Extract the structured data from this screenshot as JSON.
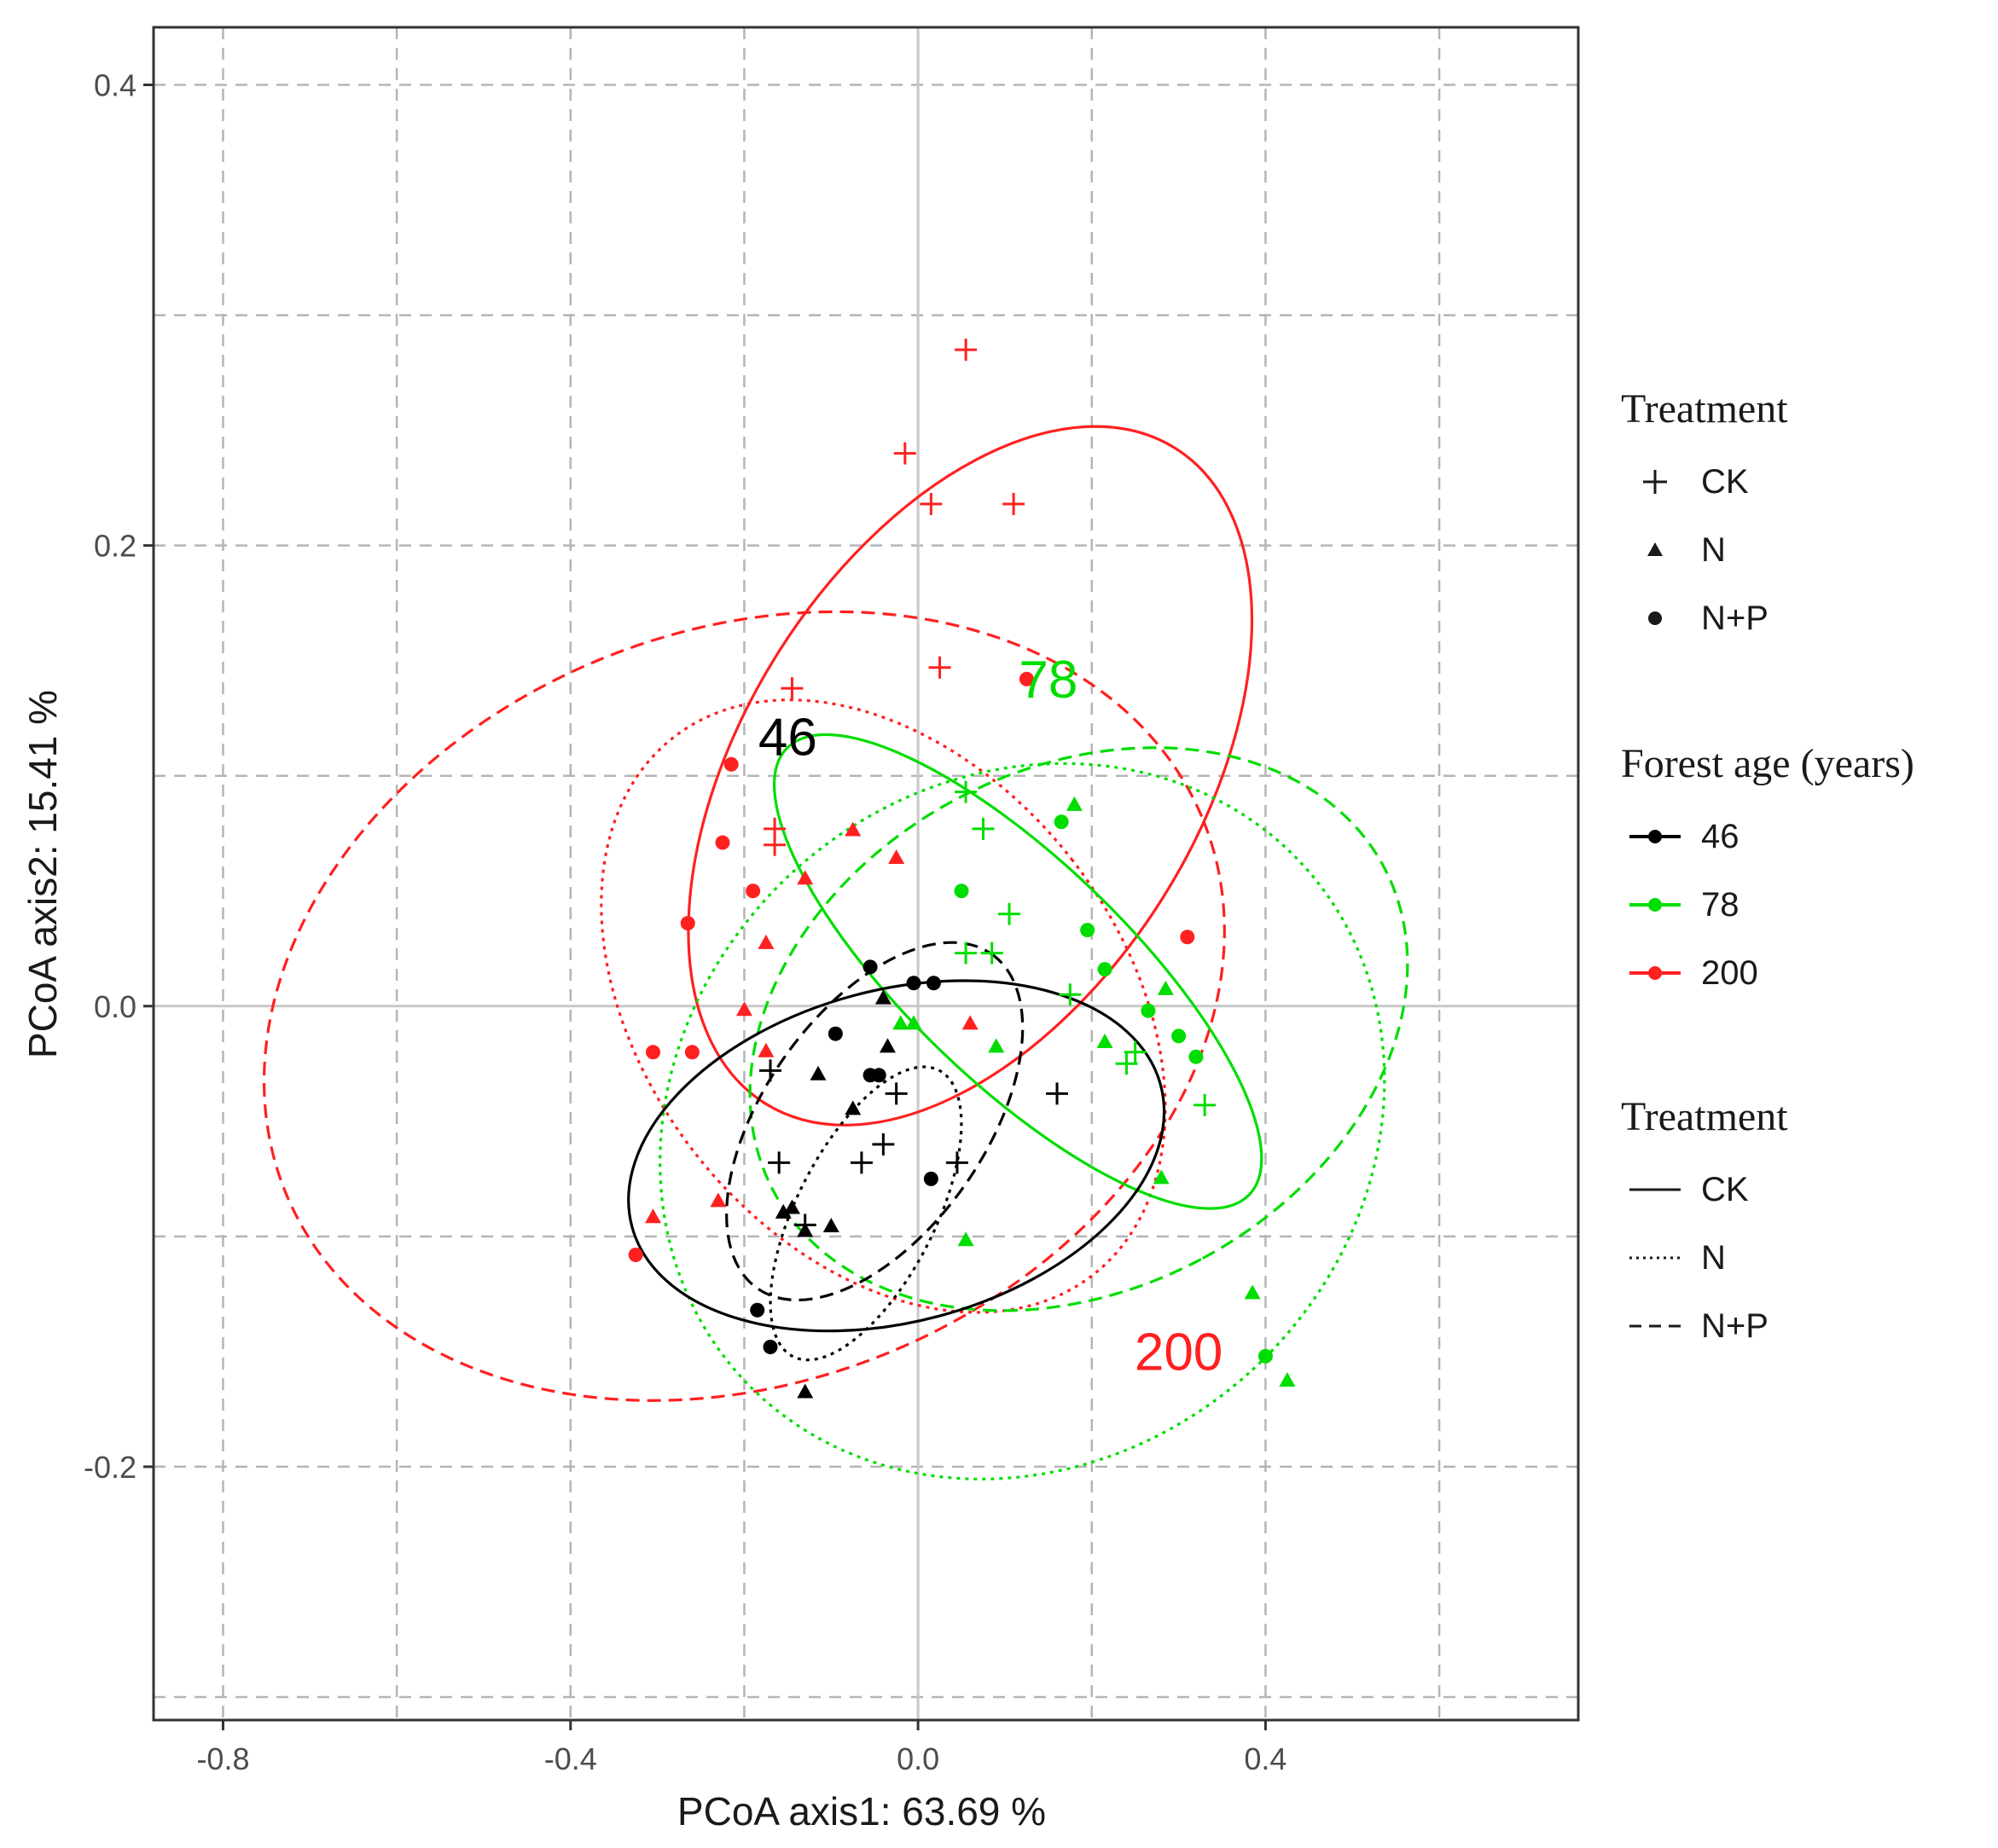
{
  "chart_data": {
    "type": "scatter",
    "title": "",
    "xlabel": "PCoA axis1:  63.69 %",
    "ylabel": "PCoA axis2:  15.41 %",
    "xlim": [
      -0.88,
      0.76
    ],
    "ylim": [
      -0.31,
      0.425
    ],
    "xticks": [
      -0.8,
      -0.4,
      0.0,
      0.4
    ],
    "xtick_labels": [
      "-0.8",
      "-0.4",
      "0.0",
      "0.4"
    ],
    "yticks": [
      -0.2,
      0.0,
      0.2,
      0.4
    ],
    "ytick_labels": [
      "-0.2",
      "0.0",
      "0.2",
      "0.4"
    ],
    "minor_gridlines_x": [
      -0.6,
      -0.2,
      0.2,
      0.6
    ],
    "minor_gridlines_y": [
      -0.3,
      -0.1,
      0.1,
      0.3
    ],
    "grid": true,
    "colors": {
      "46": "#000000",
      "78": "#00dd00",
      "200": "#ff2020"
    },
    "series": [
      {
        "name": "46",
        "treatment": "CK",
        "shape": "plus",
        "points": [
          [
            -0.17,
            -0.028
          ],
          [
            -0.16,
            -0.068
          ],
          [
            -0.025,
            -0.038
          ],
          [
            -0.065,
            -0.068
          ],
          [
            -0.04,
            -0.06
          ],
          [
            0.045,
            -0.068
          ],
          [
            -0.13,
            -0.095
          ],
          [
            0.16,
            -0.038
          ]
        ]
      },
      {
        "name": "46",
        "treatment": "N",
        "shape": "triangle",
        "points": [
          [
            -0.04,
            0.003
          ],
          [
            -0.035,
            -0.018
          ],
          [
            -0.115,
            -0.03
          ],
          [
            -0.075,
            -0.045
          ],
          [
            -0.145,
            -0.088
          ],
          [
            -0.155,
            -0.09
          ],
          [
            -0.13,
            -0.098
          ],
          [
            -0.1,
            -0.096
          ],
          [
            -0.13,
            -0.168
          ]
        ]
      },
      {
        "name": "46",
        "treatment": "N+P",
        "shape": "circle",
        "points": [
          [
            -0.055,
            0.017
          ],
          [
            -0.005,
            0.01
          ],
          [
            0.018,
            0.01
          ],
          [
            -0.095,
            -0.012
          ],
          [
            -0.055,
            -0.03
          ],
          [
            -0.045,
            -0.03
          ],
          [
            0.015,
            -0.075
          ],
          [
            -0.185,
            -0.132
          ],
          [
            -0.17,
            -0.148
          ]
        ]
      },
      {
        "name": "78",
        "treatment": "CK",
        "shape": "plus",
        "points": [
          [
            0.055,
            0.093
          ],
          [
            0.075,
            0.077
          ],
          [
            0.105,
            0.04
          ],
          [
            0.055,
            0.023
          ],
          [
            0.085,
            0.023
          ],
          [
            0.175,
            0.005
          ],
          [
            0.25,
            -0.02
          ],
          [
            0.24,
            -0.025
          ],
          [
            0.33,
            -0.043
          ]
        ]
      },
      {
        "name": "78",
        "treatment": "N",
        "shape": "triangle",
        "points": [
          [
            0.18,
            0.087
          ],
          [
            -0.02,
            -0.008
          ],
          [
            -0.005,
            -0.008
          ],
          [
            0.09,
            -0.018
          ],
          [
            0.215,
            -0.016
          ],
          [
            0.285,
            0.007
          ],
          [
            0.28,
            -0.075
          ],
          [
            0.055,
            -0.102
          ],
          [
            0.385,
            -0.125
          ],
          [
            0.425,
            -0.163
          ]
        ]
      },
      {
        "name": "78",
        "treatment": "N+P",
        "shape": "circle",
        "points": [
          [
            0.165,
            0.08
          ],
          [
            0.05,
            0.05
          ],
          [
            0.195,
            0.033
          ],
          [
            0.215,
            0.016
          ],
          [
            0.265,
            -0.002
          ],
          [
            0.3,
            -0.013
          ],
          [
            0.32,
            -0.022
          ],
          [
            0.4,
            -0.152
          ]
        ]
      },
      {
        "name": "200",
        "treatment": "CK",
        "shape": "plus",
        "points": [
          [
            0.055,
            0.285
          ],
          [
            -0.015,
            0.24
          ],
          [
            0.015,
            0.218
          ],
          [
            0.11,
            0.218
          ],
          [
            0.025,
            0.147
          ],
          [
            -0.145,
            0.138
          ],
          [
            -0.165,
            0.077
          ],
          [
            -0.165,
            0.07
          ]
        ]
      },
      {
        "name": "200",
        "treatment": "N",
        "shape": "triangle",
        "points": [
          [
            -0.075,
            0.076
          ],
          [
            -0.025,
            0.064
          ],
          [
            -0.13,
            0.055
          ],
          [
            -0.175,
            0.027
          ],
          [
            -0.2,
            -0.002
          ],
          [
            -0.175,
            -0.02
          ],
          [
            0.06,
            -0.008
          ],
          [
            -0.23,
            -0.085
          ],
          [
            -0.305,
            -0.092
          ]
        ]
      },
      {
        "name": "200",
        "treatment": "N+P",
        "shape": "circle",
        "points": [
          [
            -0.215,
            0.105
          ],
          [
            -0.225,
            0.071
          ],
          [
            -0.19,
            0.05
          ],
          [
            -0.265,
            0.036
          ],
          [
            0.125,
            0.142
          ],
          [
            0.31,
            0.03
          ],
          [
            -0.305,
            -0.02
          ],
          [
            -0.26,
            -0.02
          ],
          [
            -0.325,
            -0.108
          ]
        ]
      }
    ],
    "ellipses": [
      {
        "age": "200",
        "treatment": "CK",
        "center": [
          0.06,
          0.1
        ],
        "rx": 0.445,
        "ry": 0.099,
        "angle_deg": 58
      },
      {
        "age": "200",
        "treatment": "N+P",
        "center": [
          -0.2,
          0.0
        ],
        "rx": 0.57,
        "ry": 0.163,
        "angle_deg": 22
      },
      {
        "age": "200",
        "treatment": "N",
        "center": [
          -0.04,
          0.0
        ],
        "rx": 0.275,
        "ry": 0.148,
        "angle_deg": 38
      },
      {
        "age": "78",
        "treatment": "CK",
        "center": [
          0.115,
          0.015
        ],
        "rx": 0.37,
        "ry": 0.048,
        "angle_deg": -44
      },
      {
        "age": "78",
        "treatment": "N+P",
        "center": [
          0.185,
          -0.01
        ],
        "rx": 0.3,
        "ry": 0.15,
        "angle_deg": -62
      },
      {
        "age": "78",
        "treatment": "N",
        "center": [
          0.12,
          -0.05
        ],
        "rx": 0.39,
        "ry": 0.165,
        "angle_deg": -48
      },
      {
        "age": "46",
        "treatment": "CK",
        "center": [
          -0.025,
          -0.065
        ],
        "rx": 0.315,
        "ry": 0.072,
        "angle_deg": 15
      },
      {
        "age": "46",
        "treatment": "N",
        "center": [
          -0.06,
          -0.09
        ],
        "rx": 0.185,
        "ry": 0.03,
        "angle_deg": 63
      },
      {
        "age": "46",
        "treatment": "N+P",
        "center": [
          -0.05,
          -0.05
        ],
        "rx": 0.235,
        "ry": 0.048,
        "angle_deg": 55
      }
    ],
    "annotations": [
      {
        "text": "46",
        "x": -0.15,
        "y": 0.115,
        "color": "#000000"
      },
      {
        "text": "78",
        "x": 0.15,
        "y": 0.14,
        "color": "#00dd00"
      },
      {
        "text": "200",
        "x": 0.3,
        "y": -0.152,
        "color": "#ff2020"
      }
    ]
  },
  "legend": {
    "treatment_shape": {
      "title": "Treatment",
      "items": [
        {
          "label": "CK",
          "shape": "plus"
        },
        {
          "label": "N",
          "shape": "triangle"
        },
        {
          "label": "N+P",
          "shape": "circle"
        }
      ]
    },
    "forest_age": {
      "title": "Forest age (years)",
      "items": [
        {
          "label": "46",
          "color": "#000000"
        },
        {
          "label": "78",
          "color": "#00dd00"
        },
        {
          "label": "200",
          "color": "#ff2020"
        }
      ]
    },
    "treatment_line": {
      "title": "Treatment",
      "items": [
        {
          "label": "CK",
          "linetype": "solid"
        },
        {
          "label": "N",
          "linetype": "dotted"
        },
        {
          "label": "N+P",
          "linetype": "dashed"
        }
      ]
    }
  }
}
